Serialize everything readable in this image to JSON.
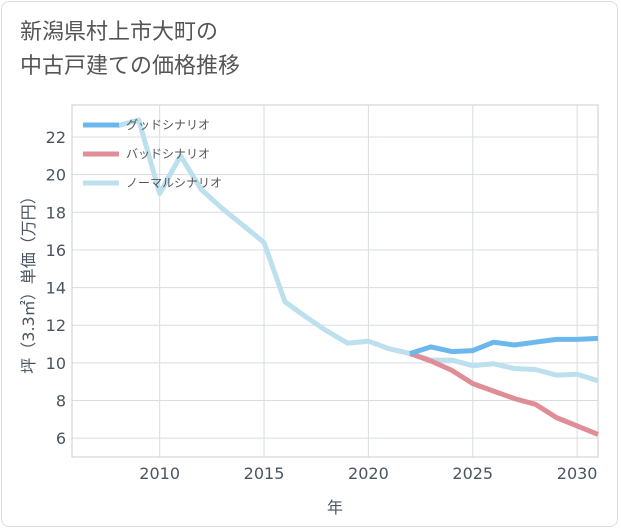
{
  "chart_data": {
    "type": "line",
    "title_lines": [
      "新潟県村上市大町の",
      "中古戸建ての価格推移"
    ],
    "xlabel": "年",
    "ylabel": "坪（3.3㎡）単価（万円）",
    "xlim": [
      2005.8,
      2031
    ],
    "ylim": [
      5,
      23.7
    ],
    "x_ticks": [
      2010,
      2015,
      2020,
      2025,
      2030
    ],
    "y_ticks": [
      6,
      8,
      10,
      12,
      14,
      16,
      18,
      20,
      22
    ],
    "legend_position": "top-left",
    "series": [
      {
        "name": "グッドシナリオ",
        "color": "#6cb8ec",
        "x": [
          2022,
          2023,
          2024,
          2025,
          2026,
          2027,
          2028,
          2029,
          2030,
          2031
        ],
        "y": [
          10.5,
          10.85,
          10.6,
          10.65,
          11.1,
          10.95,
          11.1,
          11.25,
          11.25,
          11.3
        ]
      },
      {
        "name": "バッドシナリオ",
        "color": "#df8d96",
        "x": [
          2022,
          2023,
          2024,
          2025,
          2026,
          2027,
          2028,
          2029,
          2030,
          2031
        ],
        "y": [
          10.5,
          10.1,
          9.6,
          8.9,
          8.5,
          8.1,
          7.8,
          7.1,
          6.65,
          6.2
        ]
      },
      {
        "name": "ノーマルシナリオ",
        "color": "#bde0ee",
        "x": [
          2008,
          2009,
          2010,
          2011,
          2012,
          2013,
          2014,
          2015,
          2016,
          2017,
          2018,
          2019,
          2020,
          2021,
          2022,
          2023,
          2024,
          2025,
          2026,
          2027,
          2028,
          2029,
          2030,
          2031
        ],
        "y": [
          22.6,
          22.9,
          19.0,
          21.0,
          19.2,
          18.2,
          17.3,
          16.4,
          13.25,
          12.45,
          11.7,
          11.05,
          11.15,
          10.75,
          10.5,
          10.15,
          10.15,
          9.85,
          9.95,
          9.7,
          9.65,
          9.35,
          9.4,
          9.05
        ]
      }
    ]
  }
}
